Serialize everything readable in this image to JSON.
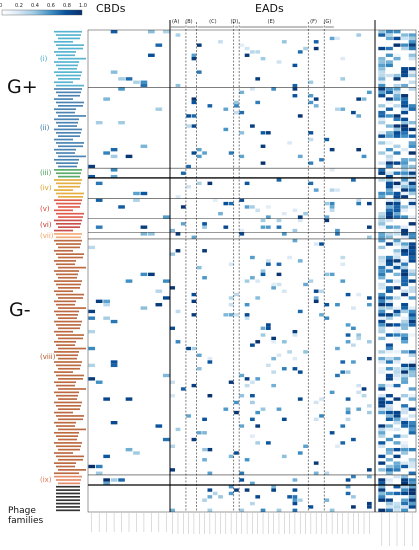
{
  "chart_data": {
    "type": "heatmap",
    "section_titles": {
      "cbds": "CBDs",
      "eads": "EADs"
    },
    "colorbar": {
      "ticks": [
        "0",
        "0.2",
        "0.4",
        "0.6",
        "0.8",
        "1.0"
      ],
      "vmin": 0,
      "vmax": 1,
      "colors": [
        "#ffffff",
        "#dbe9f6",
        "#9ecae1",
        "#4292c6",
        "#08519c",
        "#08306b"
      ]
    },
    "bracket_labels": [
      "(A)",
      "(B)",
      "(C)",
      "(D)",
      "(E)",
      "(F)",
      "(G)"
    ],
    "group_labels": {
      "gplus": "G+",
      "gminus": "G-",
      "phage": "Phage families"
    },
    "clades": [
      {
        "label": "(i)",
        "color": "#3aa7c9",
        "rows": 17
      },
      {
        "label": "(ii)",
        "color": "#2b6fa6",
        "rows": 24
      },
      {
        "label": "(iii)",
        "color": "#3c9d4e",
        "rows": 3
      },
      {
        "label": "(iv)",
        "color": "#e0a020",
        "rows": 6
      },
      {
        "label": "(v)",
        "color": "#d9412b",
        "rows": 6
      },
      {
        "label": "(vi)",
        "color": "#c0302a",
        "rows": 4
      },
      {
        "label": "(vii)",
        "color": "#f0a060",
        "rows": 2
      },
      {
        "label": "(viii)",
        "color": "#b05020",
        "rows": 70
      },
      {
        "label": "(ix)",
        "color": "#e07850",
        "rows": 3
      }
    ],
    "phage_rows": 8,
    "cbd_columns": 11,
    "ead_columns": 38,
    "summary_columns": 5,
    "column_groups": [
      {
        "bracket": "(A)",
        "columns": 3
      },
      {
        "bracket": "(B)",
        "columns": 2
      },
      {
        "bracket": "(C)",
        "columns": 7
      },
      {
        "bracket": "(D)",
        "columns": 1
      },
      {
        "bracket": "(E)",
        "columns": 13
      },
      {
        "bracket": "(F)",
        "columns": 3
      },
      {
        "bracket": "(G)",
        "columns": 2
      }
    ]
  }
}
